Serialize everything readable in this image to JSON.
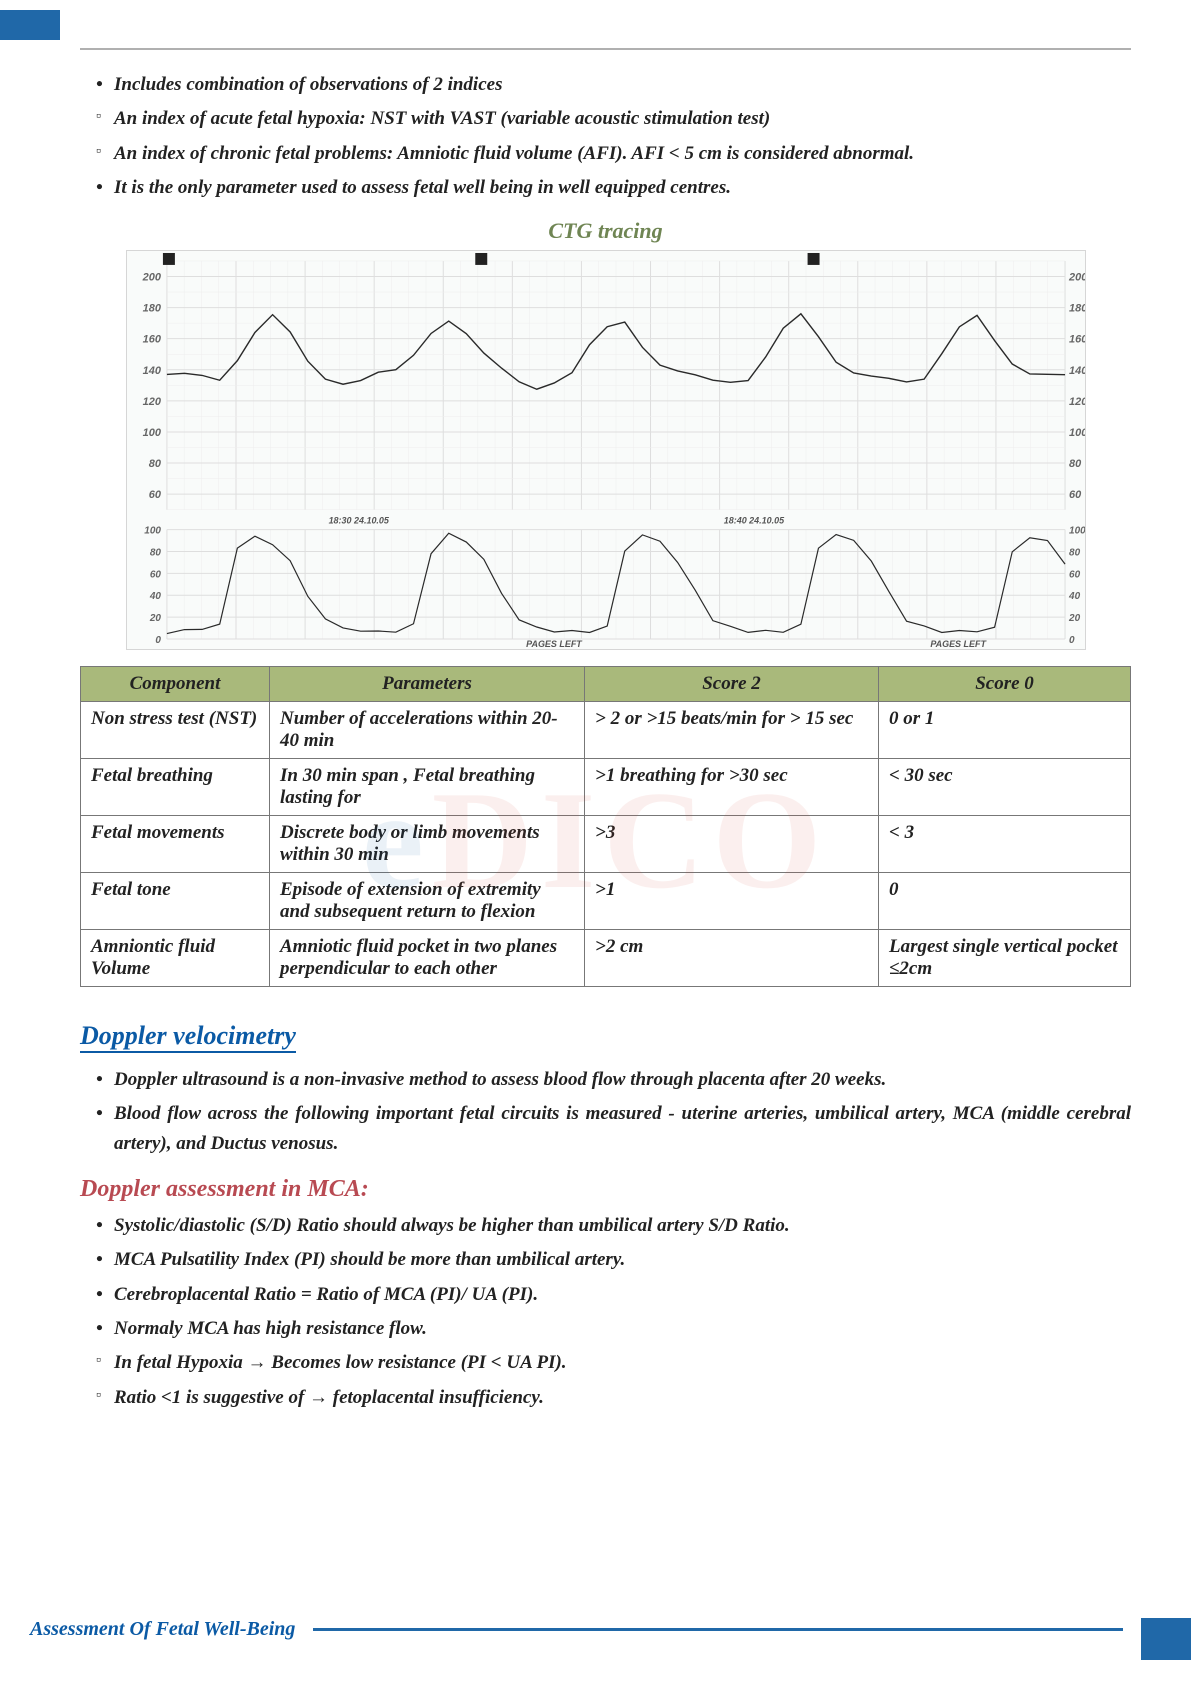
{
  "bullets_top": [
    {
      "type": "dot",
      "text": "Includes combination of observations of 2 indices"
    },
    {
      "type": "sq",
      "text": "An index of acute fetal hypoxia: NST with VAST (variable acoustic stimulation test)"
    },
    {
      "type": "sq",
      "text": "An index of chronic fetal problems: Amniotic fluid volume (AFI). AFI < 5 cm is considered abnormal."
    },
    {
      "type": "dot",
      "text": "It is the only parameter used to assess fetal well being in well equipped centres."
    }
  ],
  "ctg": {
    "title": "CTG tracing",
    "fhr": {
      "ylim": [
        50,
        210
      ],
      "yticks": [
        60,
        80,
        100,
        120,
        140,
        160,
        180,
        200
      ],
      "grid_color": "#dedede",
      "grid_minor": "#eeeeee",
      "line_color": "#2a2a2a",
      "baseline": 135,
      "data": [
        135,
        134,
        135,
        136,
        150,
        165,
        172,
        160,
        145,
        138,
        135,
        133,
        134,
        136,
        150,
        168,
        175,
        162,
        146,
        138,
        134,
        132,
        134,
        136,
        152,
        166,
        173,
        158,
        144,
        137,
        134,
        133,
        134,
        135,
        148,
        165,
        175,
        162,
        146,
        138,
        135,
        134,
        133,
        135,
        150,
        166,
        174,
        160,
        146,
        138,
        135,
        134
      ]
    },
    "toco": {
      "ylim": [
        0,
        100
      ],
      "yticks": [
        0,
        20,
        40,
        60,
        80,
        100
      ],
      "line_color": "#2a2a2a",
      "data": [
        5,
        8,
        10,
        12,
        85,
        92,
        88,
        70,
        40,
        18,
        10,
        8,
        6,
        8,
        12,
        80,
        95,
        90,
        72,
        42,
        18,
        10,
        8,
        6,
        8,
        10,
        82,
        94,
        90,
        70,
        44,
        18,
        10,
        8,
        6,
        8,
        12,
        84,
        95,
        90,
        72,
        42,
        18,
        10,
        8,
        6,
        8,
        10,
        80,
        93,
        89,
        70
      ]
    },
    "labels": {
      "left": "PAGES LEFT",
      "tick1": "18:30 24.10.05",
      "tick2": "18:40 24.10.05"
    }
  },
  "bpp": {
    "headers": [
      "Component",
      "Parameters",
      "Score 2",
      "Score 0"
    ],
    "rows": [
      [
        "Non stress test (NST)",
        "Number of accelerations within 20-40 min",
        "> 2 or >15 beats/min for > 15 sec",
        "0 or 1"
      ],
      [
        "Fetal breathing",
        "In 30 min span , Fetal breathing lasting for",
        ">1 breathing for >30 sec",
        "< 30 sec"
      ],
      [
        "Fetal movements",
        "Discrete body or limb movements within 30 min",
        ">3",
        "< 3"
      ],
      [
        "Fetal tone",
        "Episode of extension of extremity and subsequent return to flexion",
        ">1",
        "0"
      ],
      [
        "Amniontic fluid Volume",
        "Amniotic fluid pocket in two planes perpendicular to each other",
        ">2 cm",
        "Largest single vertical pocket ≤2cm"
      ]
    ]
  },
  "doppler_heading": "Doppler velocimetry",
  "doppler_bullets": [
    {
      "type": "dot",
      "text": "Doppler ultrasound is a non-invasive method to assess blood flow through placenta after 20 weeks."
    },
    {
      "type": "dot",
      "text": "Blood flow across the following important fetal circuits is measured - uterine arteries, umbilical artery, MCA (middle cerebral artery), and Ductus venosus."
    }
  ],
  "mca_heading": "Doppler assessment in MCA:",
  "mca_bullets": [
    {
      "type": "dot",
      "text": "Systolic/diastolic (S/D) Ratio should always be higher than umbilical artery S/D Ratio."
    },
    {
      "type": "dot",
      "text": "MCA Pulsatility Index (PI) should be more than umbilical artery."
    },
    {
      "type": "dot",
      "text": "Cerebroplacental Ratio = Ratio of MCA (PI)/ UA (PI)."
    },
    {
      "type": "dot",
      "text": "Normaly MCA has high resistance flow."
    },
    {
      "type": "sq",
      "text": "In fetal Hypoxia → Becomes low resistance (PI < UA PI)."
    },
    {
      "type": "sq",
      "text": "Ratio <1 is suggestive of → fetoplacental insufficiency."
    }
  ],
  "footer": "Assessment Of Fetal Well-Being",
  "watermark": {
    "pre": "e",
    "red": "DICO"
  }
}
